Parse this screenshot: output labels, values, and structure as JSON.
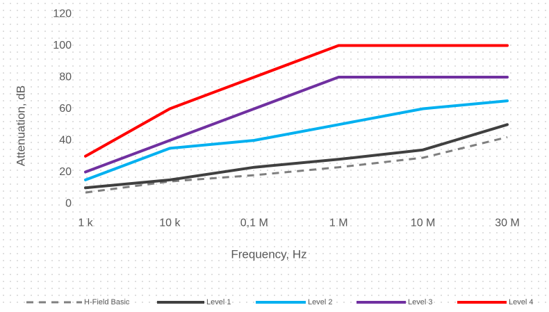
{
  "chart_data": {
    "type": "line",
    "title": "",
    "xlabel": "Frequency, Hz",
    "ylabel": "Attenuation, dB",
    "ylim": [
      0,
      120
    ],
    "yticks": [
      0,
      20,
      40,
      60,
      80,
      100,
      120
    ],
    "categories": [
      "1 k",
      "10 k",
      "0,1 M",
      "1 M",
      "10 M",
      "30 M"
    ],
    "grid": false,
    "legend_position": "bottom",
    "series": [
      {
        "name": "H-Field Basic",
        "color": "#7f7f7f",
        "dashed": true,
        "values": [
          7,
          14,
          18,
          23,
          29,
          42
        ]
      },
      {
        "name": "Level 1",
        "color": "#404040",
        "dashed": false,
        "values": [
          10,
          15,
          23,
          28,
          34,
          50
        ]
      },
      {
        "name": "Level 2",
        "color": "#00b0f0",
        "dashed": false,
        "values": [
          15,
          35,
          40,
          50,
          60,
          65
        ]
      },
      {
        "name": "Level 3",
        "color": "#7030a0",
        "dashed": false,
        "values": [
          20,
          40,
          60,
          80,
          80,
          80
        ]
      },
      {
        "name": "Level 4",
        "color": "#ff0000",
        "dashed": false,
        "values": [
          30,
          60,
          80,
          100,
          100,
          100
        ]
      }
    ]
  }
}
